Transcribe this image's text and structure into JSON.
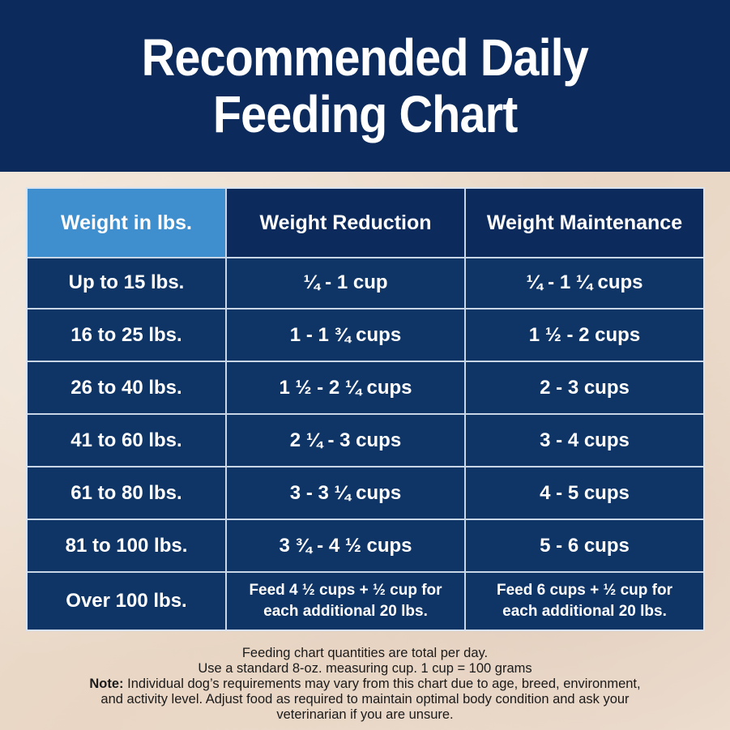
{
  "header": {
    "title_line1": "Recommended Daily",
    "title_line2": "Feeding Chart"
  },
  "table": {
    "columns": [
      "Weight in lbs.",
      "Weight Reduction",
      "Weight Maintenance"
    ],
    "rows": [
      [
        "Up to 15 lbs.",
        "¼ - 1 cup",
        "¼ - 1 ¼ cups"
      ],
      [
        "16 to 25 lbs.",
        "1  - 1 ¾ cups",
        "1 ½ - 2 cups"
      ],
      [
        "26 to 40 lbs.",
        "1 ½ - 2 ¼ cups",
        "2 - 3 cups"
      ],
      [
        "41 to 60 lbs.",
        "2 ¼ - 3 cups",
        "3 - 4  cups"
      ],
      [
        "61 to 80 lbs.",
        "3  - 3 ¼ cups",
        "4 - 5  cups"
      ],
      [
        "81 to 100 lbs.",
        "3 ¾ - 4 ½  cups",
        "5 - 6  cups"
      ],
      [
        "Over 100 lbs.",
        "Feed 4 ½ cups + ½ cup for each additional 20 lbs.",
        "Feed 6 cups + ½ cup for each additional 20 lbs."
      ]
    ]
  },
  "footnote": {
    "line1": "Feeding chart quantities are total per day.",
    "line2": "Use a standard 8-oz. measuring cup. 1 cup = 100 grams",
    "note_label": "Note:",
    "note_text": " Individual dog’s requirements may vary from this chart due to age, breed, environment, and activity level. Adjust food as required to maintain optimal body condition and ask your veterinarian if you are unsure."
  },
  "colors": {
    "header_bg": "#0c2a5b",
    "table_bg": "#0f3566",
    "first_header_cell": "#3f8fcf",
    "background": "#ecdccb"
  }
}
